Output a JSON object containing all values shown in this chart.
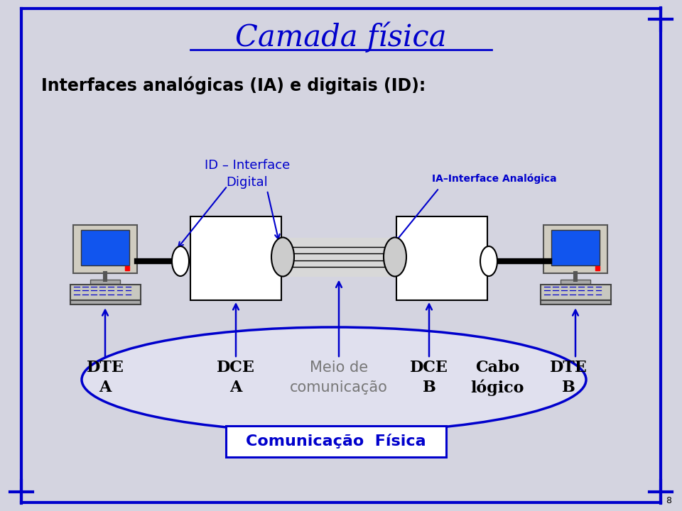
{
  "title": "Camada física",
  "subtitle": "Interfaces analógicas (IA) e digitais (ID):",
  "bg_color": "#d4d4e0",
  "blue": "#0000cc",
  "label_id": "ID – Interface\nDigital",
  "label_ia": "IA–Interface Analógica",
  "label_comm": "Comunicação  Física",
  "page_num": "8"
}
